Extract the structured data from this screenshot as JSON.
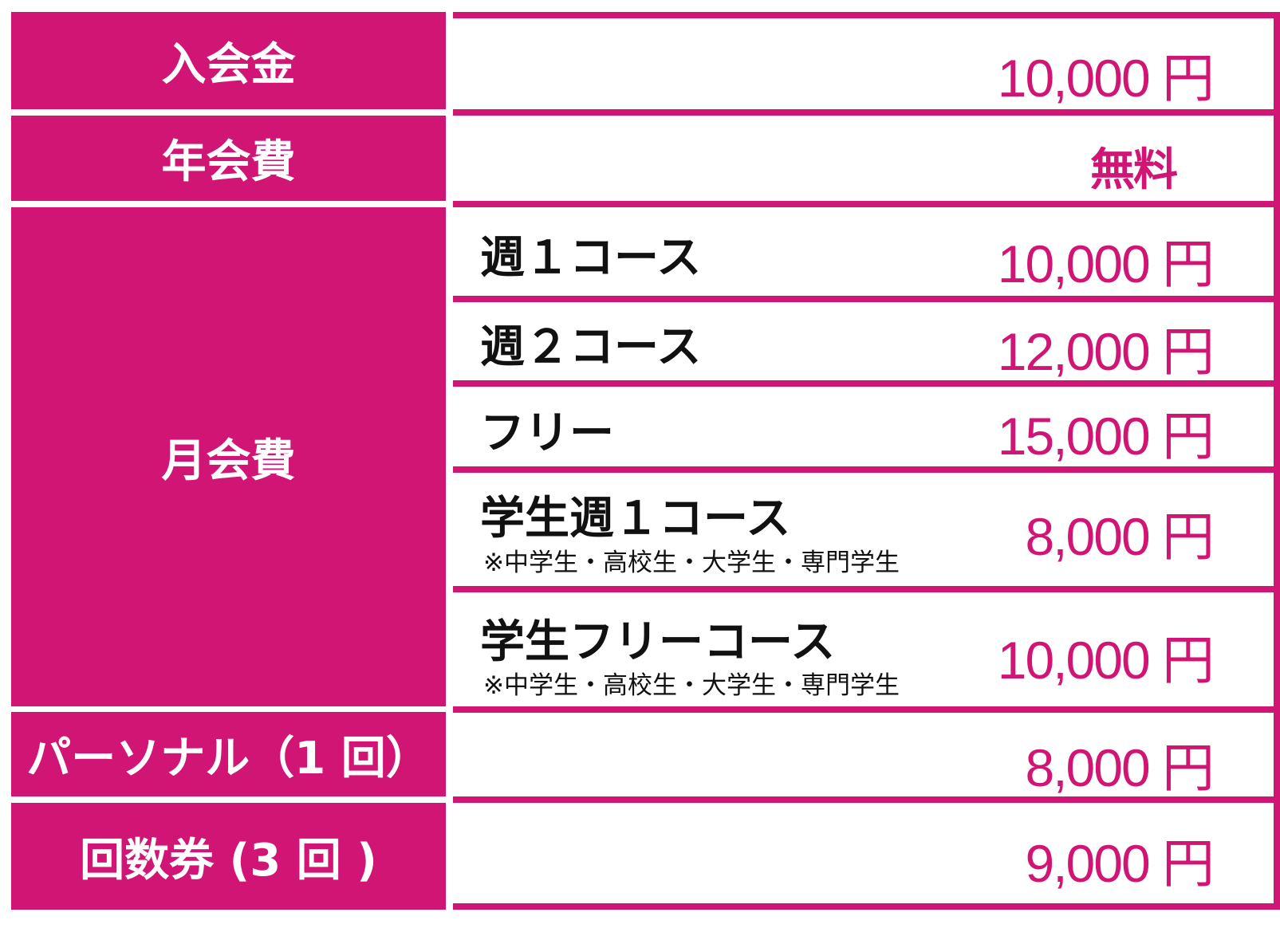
{
  "rows": [
    {
      "label": "入会金",
      "price": "10,000 円"
    },
    {
      "label": "年会費",
      "price": "無料"
    },
    {
      "label": "月会費",
      "courses": [
        {
          "name": "週１コース",
          "price": "10,000 円"
        },
        {
          "name": "週２コース",
          "price": "12,000 円"
        },
        {
          "name": "フリー",
          "price": "15,000 円"
        },
        {
          "name": "学生週１コース",
          "note": "※中学生・高校生・大学生・専門学生",
          "price": "8,000 円"
        },
        {
          "name": "学生フリーコース",
          "note": "※中学生・高校生・大学生・専門学生",
          "price": "10,000 円"
        }
      ]
    },
    {
      "label": "パーソナル（1 回）",
      "price": "8,000 円"
    },
    {
      "label": "回数券 (3 回 )",
      "price": "9,000 円"
    }
  ],
  "colors": {
    "accent": "#d01574"
  }
}
